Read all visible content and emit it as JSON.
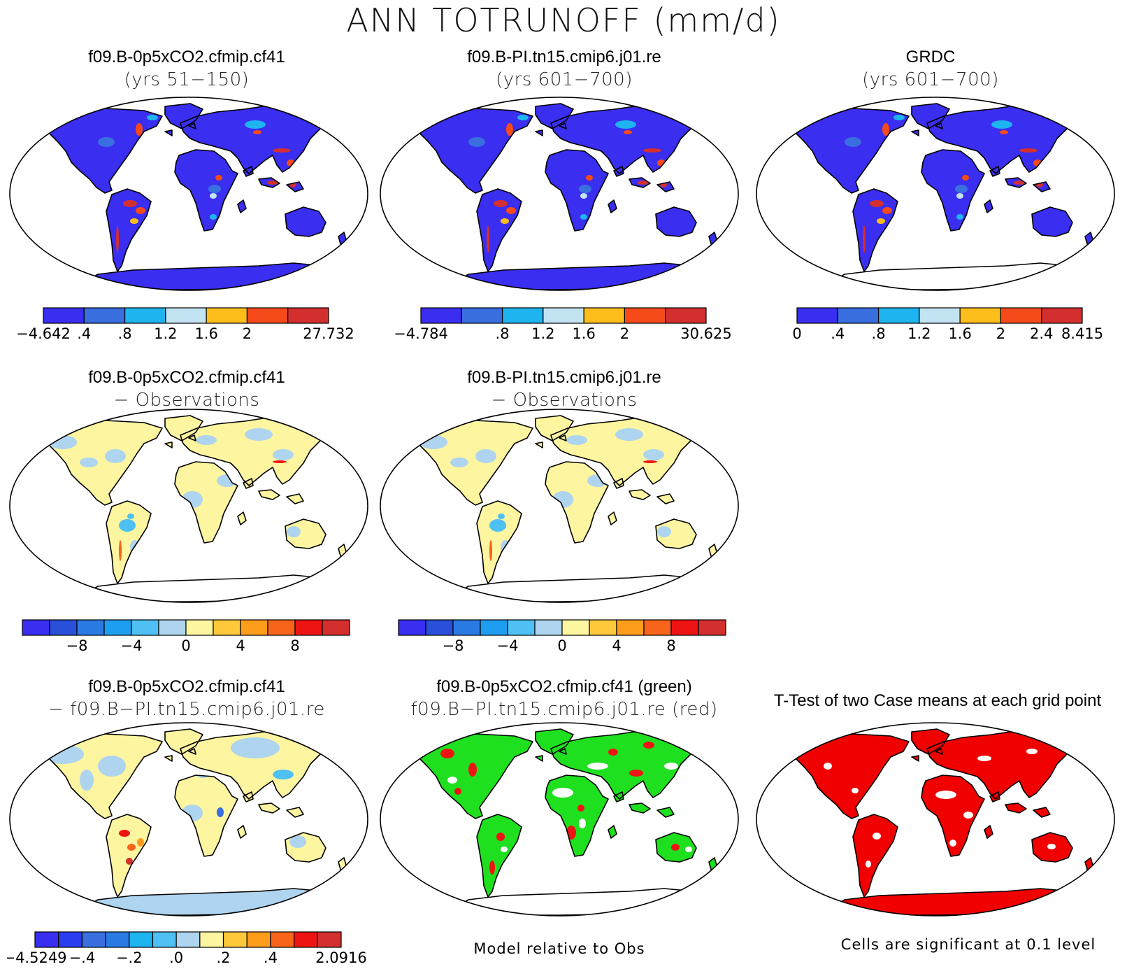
{
  "figure": {
    "title": "ANN TOTRUNOFF (mm/d)",
    "notes": {
      "model_relative": "Model relative to Obs",
      "significance": "Cells are significant at 0.1 level"
    }
  },
  "panels": [
    {
      "id": "p1",
      "line1": "f09.B-0p5xCO2.cfmip.cf41",
      "line2": "(yrs 51−150)",
      "land": "#3a2ef0",
      "antarctica": "#3a2ef0",
      "style": "abs"
    },
    {
      "id": "p2",
      "line1": "f09.B-PI.tn15.cmip6.j01.re",
      "line2": "(yrs 601−700)",
      "land": "#3a2ef0",
      "antarctica": "#3a2ef0",
      "style": "abs"
    },
    {
      "id": "p3",
      "line1": "GRDC",
      "line2": "(yrs 601−700)",
      "land": "#3a2ef0",
      "antarctica": "#ffffff",
      "style": "abs"
    },
    {
      "id": "p4",
      "line1": "f09.B-0p5xCO2.cfmip.cf41",
      "line2": "− Observations",
      "land": "#fdf5a0",
      "antarctica": "#ffffff",
      "style": "diff"
    },
    {
      "id": "p5",
      "line1": "f09.B-PI.tn15.cmip6.j01.re",
      "line2": "− Observations",
      "land": "#fdf5a0",
      "antarctica": "#ffffff",
      "style": "diff"
    },
    {
      "id": "p6",
      "line1": "f09.B-0p5xCO2.cfmip.cf41",
      "line2": "− f09.B−PI.tn15.cmip6.j01.re",
      "land": "#fdf5a0",
      "antarctica": "#aed4ef",
      "style": "diff2"
    },
    {
      "id": "p7",
      "line1": "f09.B-0p5xCO2.cfmip.cf41 (green)",
      "line2": "f09.B−PI.tn15.cmip6.j01.re (red)",
      "land": "#1fe01f",
      "antarctica": "#ffffff",
      "style": "green"
    },
    {
      "id": "p8",
      "line1": "T-Test of two Case means at each grid point",
      "line2": "",
      "land": "#f00000",
      "antarctica": "#f00000",
      "style": "red"
    }
  ],
  "colorbars": [
    {
      "id": "cb1",
      "colors": [
        "#3a2ef0",
        "#3a6fe0",
        "#1eb4f0",
        "#c2e4f2",
        "#fdbd1b",
        "#f64a1a",
        "#d42f2f"
      ],
      "labels": [
        {
          "t": "−4.642",
          "p": 0
        },
        {
          "t": ".4",
          "p": 1
        },
        {
          "t": ".8",
          "p": 2
        },
        {
          "t": "1.2",
          "p": 3
        },
        {
          "t": "1.6",
          "p": 4
        },
        {
          "t": "2",
          "p": 5
        },
        {
          "t": "27.732",
          "p": 7
        }
      ]
    },
    {
      "id": "cb2",
      "colors": [
        "#3a2ef0",
        "#3a6fe0",
        "#1eb4f0",
        "#c2e4f2",
        "#fdbd1b",
        "#f64a1a",
        "#d42f2f"
      ],
      "labels": [
        {
          "t": "−4.784",
          "p": 0
        },
        {
          "t": ".8",
          "p": 2
        },
        {
          "t": "1.2",
          "p": 3
        },
        {
          "t": "1.6",
          "p": 4
        },
        {
          "t": "2",
          "p": 5
        },
        {
          "t": "30.625",
          "p": 7
        }
      ]
    },
    {
      "id": "cb3",
      "colors": [
        "#3a2ef0",
        "#3a6fe0",
        "#1eb4f0",
        "#c2e4f2",
        "#fdbd1b",
        "#f64a1a",
        "#d42f2f"
      ],
      "labels": [
        {
          "t": "0",
          "p": 0
        },
        {
          "t": ".4",
          "p": 1
        },
        {
          "t": ".8",
          "p": 2
        },
        {
          "t": "1.2",
          "p": 3
        },
        {
          "t": "1.6",
          "p": 4
        },
        {
          "t": "2",
          "p": 5
        },
        {
          "t": "2.4",
          "p": 6
        },
        {
          "t": "8.415",
          "p": 7
        }
      ]
    },
    {
      "id": "cb4",
      "colors": [
        "#3a2ef0",
        "#2a4fd8",
        "#2a7ae4",
        "#1e9ef0",
        "#4ec0f4",
        "#aed4ef",
        "#fdf5a0",
        "#fdc83a",
        "#fd9d1b",
        "#f8641a",
        "#ef1414",
        "#d42f2f"
      ],
      "labels": [
        {
          "t": "−8",
          "p": 2
        },
        {
          "t": "−4",
          "p": 4
        },
        {
          "t": "0",
          "p": 6
        },
        {
          "t": "4",
          "p": 8
        },
        {
          "t": "8",
          "p": 10
        }
      ]
    },
    {
      "id": "cb5",
      "colors": [
        "#3a2ef0",
        "#2a4fd8",
        "#2a7ae4",
        "#1e9ef0",
        "#4ec0f4",
        "#aed4ef",
        "#fdf5a0",
        "#fdc83a",
        "#fd9d1b",
        "#f8641a",
        "#ef1414",
        "#d42f2f"
      ],
      "labels": [
        {
          "t": "−8",
          "p": 2
        },
        {
          "t": "−4",
          "p": 4
        },
        {
          "t": "0",
          "p": 6
        },
        {
          "t": "4",
          "p": 8
        },
        {
          "t": "8",
          "p": 10
        }
      ]
    },
    {
      "id": "cb6",
      "colors": [
        "#3a2ef0",
        "#2a3ef0",
        "#3a6fe0",
        "#2a7ae4",
        "#1eb4f0",
        "#4ec0f4",
        "#aed4ef",
        "#fdf5a0",
        "#fdc83a",
        "#fd9d1b",
        "#f8641a",
        "#ef1414",
        "#d42f2f"
      ],
      "labels": [
        {
          "t": "−4.5249",
          "p": 0
        },
        {
          "t": "−.4",
          "p": 2
        },
        {
          "t": "−.2",
          "p": 4
        },
        {
          "t": ".0",
          "p": 6
        },
        {
          "t": ".2",
          "p": 8
        },
        {
          "t": ".4",
          "p": 10
        },
        {
          "t": "2.0916",
          "p": 13
        }
      ]
    }
  ]
}
